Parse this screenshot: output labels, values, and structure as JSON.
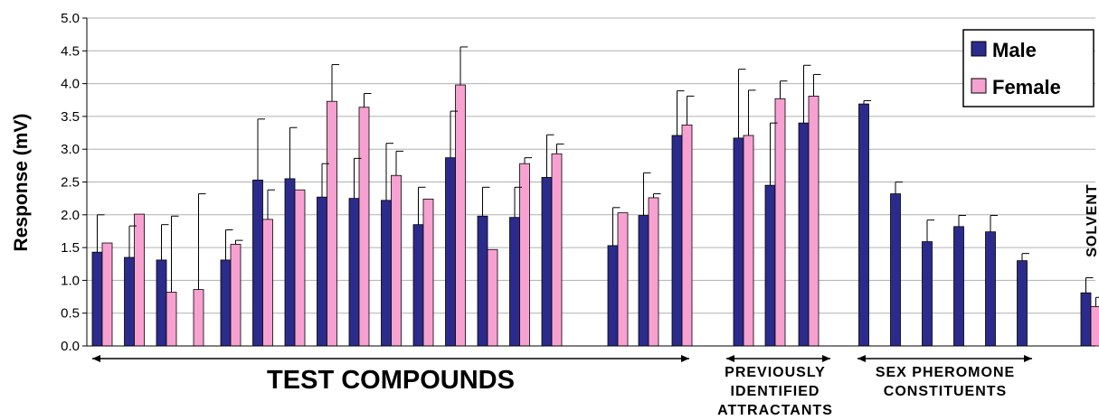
{
  "chart_data": {
    "type": "bar",
    "ylabel": "Response (mV)",
    "ylim": [
      0,
      5.0
    ],
    "yticks": [
      "0.0",
      "0.5",
      "1.0",
      "1.5",
      "2.0",
      "2.5",
      "3.0",
      "3.5",
      "4.0",
      "4.5",
      "5.0"
    ],
    "grid": true,
    "legend": {
      "placement": "top-right"
    },
    "colors": {
      "Male": "#2b2b8c",
      "Female": "#f7a1d1"
    },
    "series": [
      {
        "name": "Male",
        "values": [
          1.43,
          1.35,
          1.31,
          null,
          1.31,
          2.53,
          2.55,
          2.27,
          2.25,
          2.22,
          1.85,
          2.87,
          1.98,
          1.96,
          2.57,
          1.53,
          1.99,
          3.21,
          3.17,
          2.45,
          3.4,
          3.69,
          2.32,
          1.59,
          1.82,
          1.74,
          1.3,
          0.81
        ],
        "errors": [
          0.57,
          0.48,
          0.54,
          null,
          0.46,
          0.93,
          0.78,
          0.51,
          0.61,
          0.87,
          0.57,
          0.71,
          0.44,
          0.46,
          0.65,
          0.58,
          0.65,
          0.68,
          1.05,
          0.95,
          0.88,
          0.05,
          0.18,
          0.33,
          0.17,
          0.25,
          0.11,
          0.23
        ]
      },
      {
        "name": "Female",
        "values": [
          1.57,
          2.01,
          0.82,
          0.86,
          1.55,
          1.93,
          2.38,
          3.73,
          3.64,
          2.6,
          2.24,
          3.98,
          1.47,
          2.78,
          2.93,
          2.03,
          2.26,
          3.37,
          3.21,
          3.77,
          3.81,
          null,
          null,
          null,
          null,
          null,
          null,
          0.6
        ],
        "errors": [
          null,
          null,
          1.16,
          1.46,
          0.06,
          0.45,
          null,
          0.56,
          0.21,
          0.37,
          null,
          0.58,
          null,
          0.09,
          0.15,
          null,
          0.06,
          0.44,
          0.69,
          0.27,
          0.33,
          null,
          null,
          null,
          null,
          null,
          null,
          0.14
        ]
      }
    ],
    "groups": [
      {
        "label": "TEST COMPOUNDS",
        "from": 0,
        "to": 16
      },
      {
        "label_lines": [
          "PREVIOUSLY",
          "IDENTIFIED",
          "ATTRACTANTS"
        ],
        "from": 17,
        "to": 20
      },
      {
        "label_lines": [
          "SEX PHEROMONE",
          "CONSTITUENTS"
        ],
        "from": 21,
        "to": 26
      },
      {
        "label": "SOLVENT",
        "from": 27,
        "to": 27
      }
    ]
  }
}
